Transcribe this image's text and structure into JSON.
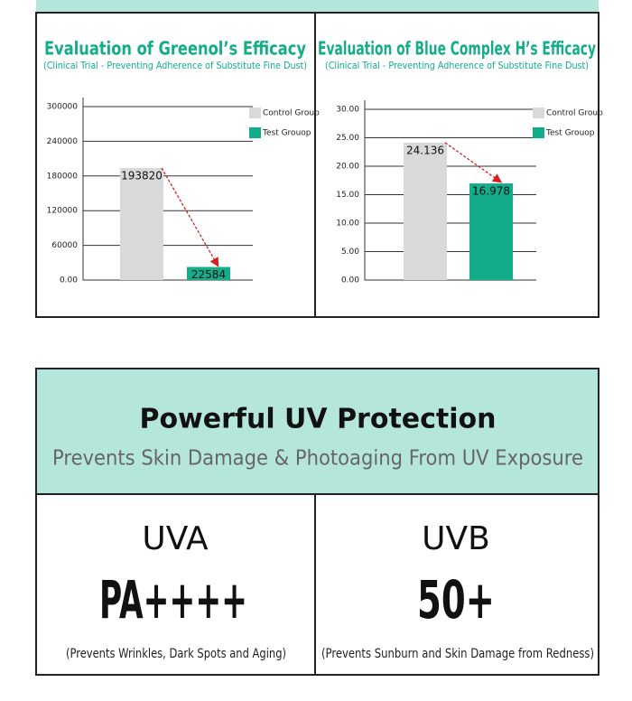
{
  "chart_data": [
    {
      "type": "bar",
      "title": "Evaluation of Greenol’s Efficacy",
      "subtitle": "(Clinical Trial - Preventing Adherence of Substitute Fine Dust)",
      "categories": [
        "Control Group",
        "Test Grouop"
      ],
      "values": [
        193820,
        22584
      ],
      "colors": [
        "#d9d9d9",
        "#14ad8a"
      ],
      "ylim": [
        0,
        300000
      ],
      "yticks": [
        {
          "value": 0,
          "label": "0.00"
        },
        60000,
        120000,
        180000,
        240000,
        300000
      ],
      "grid": true
    },
    {
      "type": "bar",
      "title": "Evaluation of Blue Complex H’s Efficacy",
      "subtitle": "(Clinical Trial - Preventing Adherence of Substitute Fine Dust)",
      "categories": [
        "Control Group",
        "Test Grouop"
      ],
      "values": [
        24.136,
        16.978
      ],
      "colors": [
        "#d9d9d9",
        "#14ad8a"
      ],
      "ylim": [
        0,
        30
      ],
      "yticks": [
        {
          "value": 0,
          "label": "0.00"
        },
        {
          "value": 5,
          "label": "5.00"
        },
        {
          "value": 10,
          "label": "10.00"
        },
        {
          "value": 15,
          "label": "15.00"
        },
        {
          "value": 20,
          "label": "20.00"
        },
        {
          "value": 25,
          "label": "25.00"
        },
        {
          "value": 30,
          "label": "30.00"
        }
      ],
      "grid": true
    }
  ],
  "uv": {
    "title": "Powerful UV Protection",
    "subtitle": "Prevents Skin Damage & Photoaging From UV Exposure",
    "columns": [
      {
        "label": "UVA",
        "rating": "PA++++",
        "note": "(Prevents Wrinkles, Dark Spots and Aging)"
      },
      {
        "label": "UVB",
        "rating": "50+",
        "note": "(Prevents Sunburn and Skin Damage from Redness)"
      }
    ]
  }
}
